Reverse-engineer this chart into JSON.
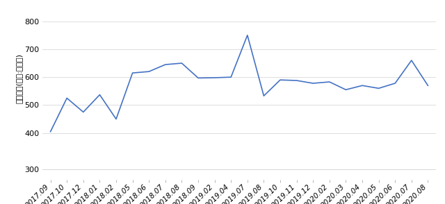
{
  "x_labels": [
    "2017.09",
    "2017.10",
    "2017.12",
    "2018.01",
    "2018.02",
    "2018.05",
    "2018.06",
    "2018.07",
    "2018.08",
    "2018.09",
    "2019.02",
    "2019.04",
    "2019.07",
    "2019.08",
    "2019.10",
    "2019.11",
    "2019.12",
    "2020.02",
    "2020.03",
    "2020.04",
    "2020.05",
    "2020.06",
    "2020.07",
    "2020.08"
  ],
  "values": [
    405,
    525,
    475,
    537,
    450,
    615,
    620,
    645,
    650,
    597,
    598,
    600,
    750,
    533,
    590,
    588,
    578,
    583,
    555,
    570,
    560,
    578,
    660,
    570
  ],
  "line_color": "#4472c4",
  "ylabel": "거래금액(단위:백만원)",
  "yticks_main": [
    400,
    500,
    600,
    700,
    800
  ],
  "ytick_bottom": 300,
  "background_color": "#ffffff",
  "grid_color": "#d8d8d8",
  "tick_fontsize": 8,
  "ylabel_fontsize": 8,
  "line_width": 1.2
}
